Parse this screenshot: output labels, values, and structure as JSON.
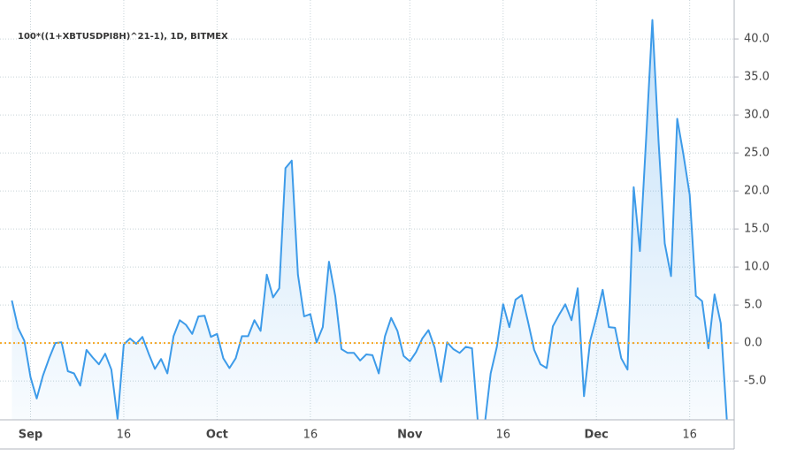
{
  "chart_data": {
    "type": "area",
    "title": "100*((1+XBTUSDPI8H)^21-1), 1D, BITMEX",
    "categories": [
      null,
      null,
      null,
      "Sep",
      null,
      null,
      null,
      null,
      null,
      null,
      null,
      null,
      null,
      null,
      null,
      null,
      null,
      null,
      "16",
      null,
      null,
      null,
      null,
      null,
      null,
      null,
      null,
      null,
      null,
      null,
      null,
      null,
      null,
      "Oct",
      null,
      null,
      null,
      null,
      null,
      null,
      null,
      null,
      null,
      null,
      null,
      null,
      null,
      null,
      "16",
      null,
      null,
      null,
      null,
      null,
      null,
      null,
      null,
      null,
      null,
      null,
      null,
      null,
      null,
      null,
      "Nov",
      null,
      null,
      null,
      null,
      null,
      null,
      null,
      null,
      null,
      null,
      null,
      null,
      null,
      null,
      "16",
      null,
      null,
      null,
      null,
      null,
      null,
      null,
      null,
      null,
      null,
      null,
      null,
      null,
      null,
      "Dec",
      null,
      null,
      null,
      null,
      null,
      null,
      null,
      null,
      null,
      null,
      null,
      null,
      null,
      null,
      "16",
      null,
      null,
      null,
      null,
      null,
      null
    ],
    "values": [
      5.6,
      2,
      0.3,
      -4.5,
      -7.3,
      -4.3,
      -2,
      0,
      0.1,
      -3.7,
      -4,
      -5.6,
      -0.9,
      -1.9,
      -2.8,
      -1.4,
      -3.5,
      -10,
      -0.2,
      0.6,
      -0.1,
      0.8,
      -1.4,
      -3.4,
      -2.1,
      -4,
      0.9,
      3,
      2.4,
      1.2,
      3.5,
      3.6,
      0.8,
      1.2,
      -2,
      -3.3,
      -2,
      0.9,
      0.9,
      3,
      1.6,
      9,
      6,
      7.2,
      23,
      24,
      9,
      3.5,
      3.8,
      0.1,
      2.1,
      10.7,
      6.2,
      -0.8,
      -1.3,
      -1.3,
      -2.3,
      -1.5,
      -1.6,
      -4,
      0.9,
      3.3,
      1.6,
      -1.7,
      -2.4,
      -1.2,
      0.6,
      1.7,
      -0.6,
      -5.1,
      0.1,
      -0.8,
      -1.3,
      -0.5,
      -0.7,
      -11,
      -11,
      -4,
      -0.5,
      5.1,
      2.1,
      5.7,
      6.3,
      2.8,
      -0.9,
      -2.8,
      -3.3,
      2.2,
      3.7,
      5.1,
      3,
      7.2,
      -7,
      0.3,
      3.4,
      7,
      2.1,
      2,
      -2,
      -3.5,
      20.5,
      12.1,
      27,
      42.5,
      26.5,
      13.1,
      8.8,
      29.5,
      24.8,
      19.5,
      6.2,
      5.5,
      -0.7,
      6.4,
      2.6,
      -10.5
    ],
    "color": "#3d9be9",
    "ylim": [
      -10.1,
      42.8
    ],
    "yticks": [
      {
        "value": -5,
        "label": "-5.0"
      },
      {
        "value": 0,
        "label": "0.0"
      },
      {
        "value": 5,
        "label": "5.0"
      },
      {
        "value": 10,
        "label": "10.0"
      },
      {
        "value": 15,
        "label": "15.0"
      },
      {
        "value": 20,
        "label": "20.0"
      },
      {
        "value": 25,
        "label": "25.0"
      },
      {
        "value": 30,
        "label": "30.0"
      },
      {
        "value": 35,
        "label": "35.0"
      },
      {
        "value": 40,
        "label": "40.0"
      }
    ],
    "grid": true,
    "reference_line": 0,
    "reference_color": "#f5a623"
  }
}
